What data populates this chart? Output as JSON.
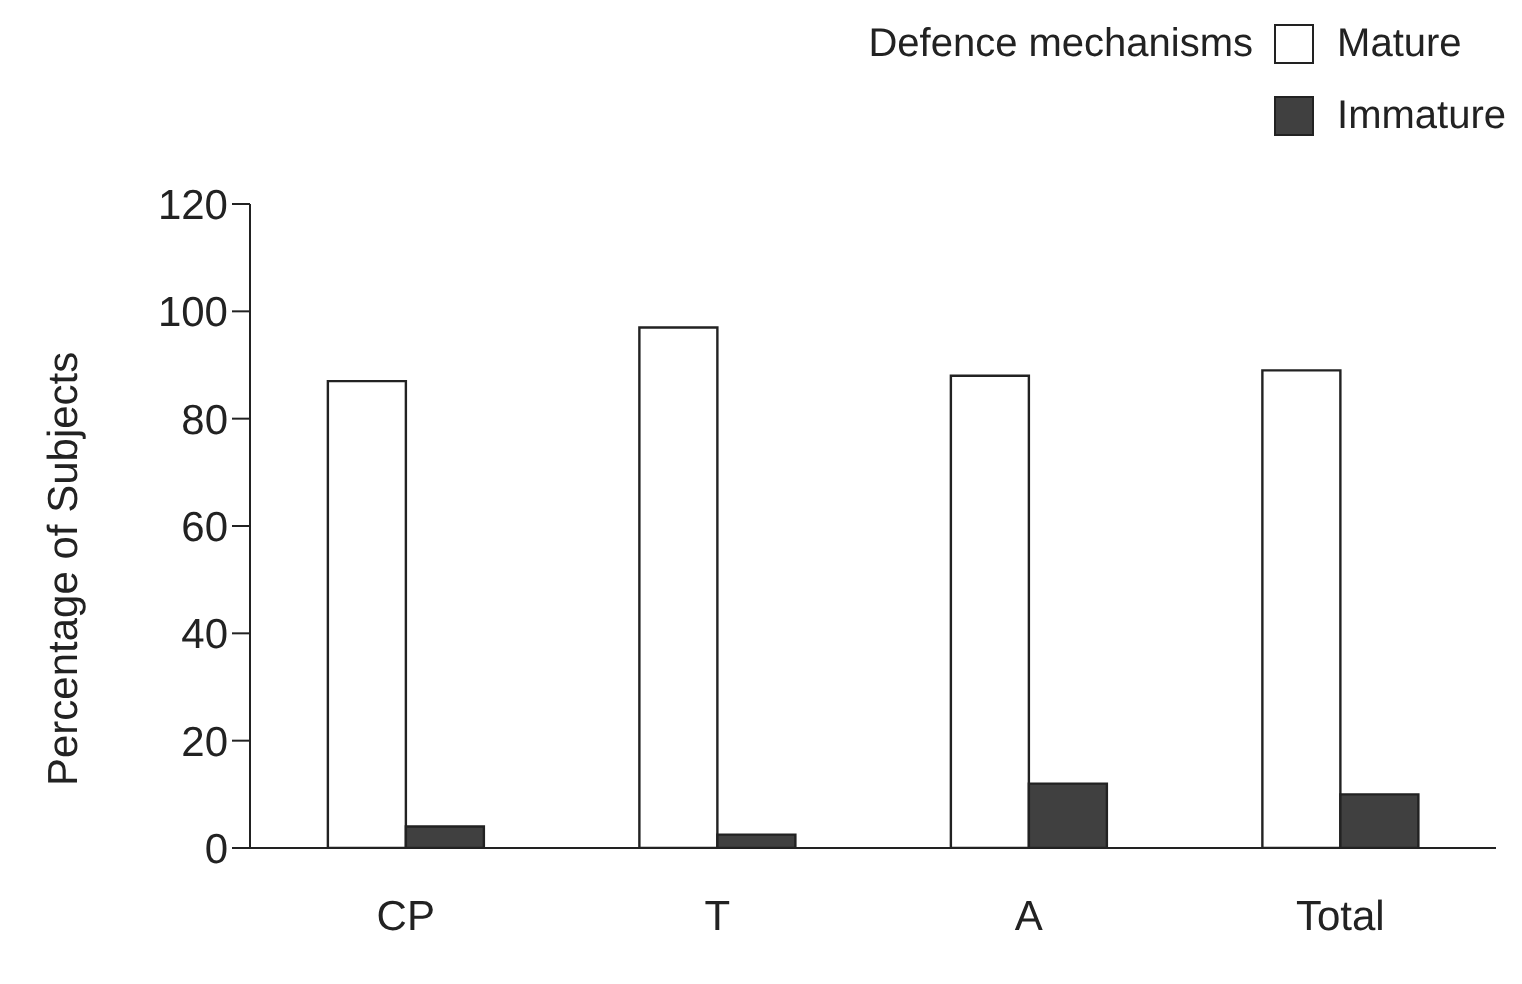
{
  "chart_data": {
    "type": "bar",
    "ylabel": "Percentage of Subjects",
    "legend_title": "Defence mechanisms",
    "categories": [
      "CP",
      "T",
      "A",
      "Total"
    ],
    "series": [
      {
        "name": "Mature",
        "color": "#ffffff",
        "values": [
          87,
          97,
          88,
          89
        ]
      },
      {
        "name": "Immature",
        "color": "#404040",
        "values": [
          4,
          2.5,
          12,
          10
        ]
      }
    ],
    "ylim": [
      0,
      120
    ],
    "yticks": [
      0,
      20,
      40,
      60,
      80,
      100,
      120
    ],
    "grid": false,
    "legend": "top right"
  }
}
